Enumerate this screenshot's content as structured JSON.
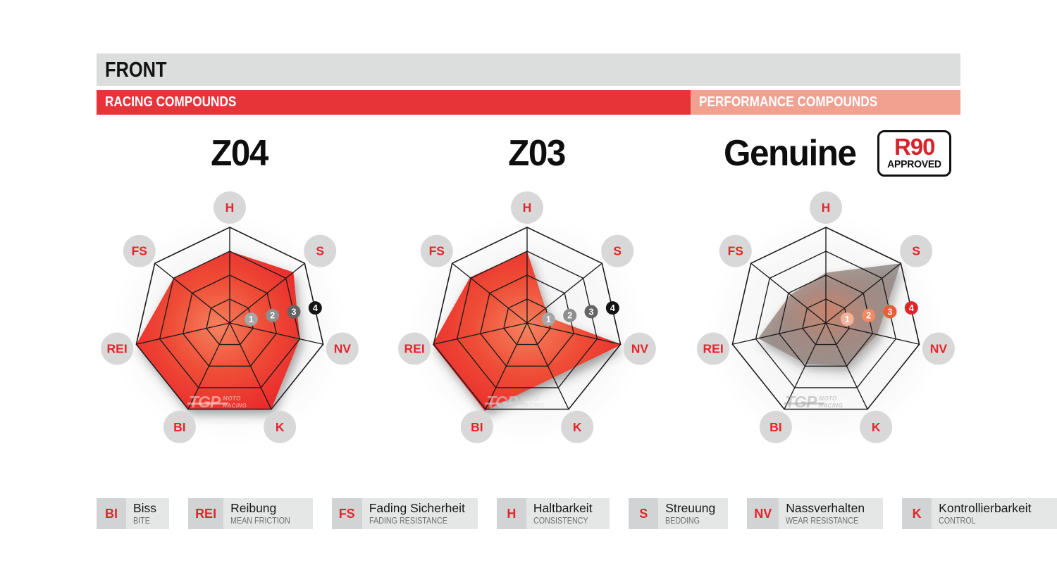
{
  "header": {
    "section_title": "FRONT",
    "left_band": "RACING COMPOUNDS",
    "right_band": "PERFORMANCE COMPOUNDS"
  },
  "colors": {
    "bar_gray": "#dcdddd",
    "band_red": "#e73439",
    "band_salmon": "#f2a191",
    "badge_red": "#d8232a",
    "web_line": "#1c1c1c",
    "axis_label_circle": "#d8d8d8",
    "axis_label_text": "#e4252b",
    "tick_gray": [
      "#a6a6a6",
      "#8d8d8d",
      "#646464",
      "#141414"
    ],
    "tick_warm": [
      "#f3b29a",
      "#f28a62",
      "#ee5c36",
      "#e1242a"
    ],
    "fill_red": [
      "#f5825f",
      "#ef4f38",
      "#e92629"
    ],
    "fill_gray": [
      "#ca7a60",
      "#a08379",
      "#8f8b89"
    ]
  },
  "watermark": {
    "brand": "TGP",
    "line1": "MOTO",
    "line2": "RACING"
  },
  "axes": [
    {
      "id": "H",
      "angle": 90
    },
    {
      "id": "S",
      "angle": 38.571
    },
    {
      "id": "NV",
      "angle": -12.857
    },
    {
      "id": "K",
      "angle": -64.286
    },
    {
      "id": "BI",
      "angle": -115.714
    },
    {
      "id": "REI",
      "angle": -167.143
    },
    {
      "id": "FS",
      "angle": 141.429
    }
  ],
  "scale_ticks": [
    1,
    2,
    3,
    4
  ],
  "chart_data": [
    {
      "type": "radar",
      "title": "Z04",
      "band": "RACING COMPOUNDS",
      "axes": [
        "H",
        "S",
        "NV",
        "K",
        "BI",
        "REI",
        "FS"
      ],
      "scale": [
        0,
        4
      ],
      "values": [
        3,
        3.4,
        3,
        4,
        4,
        4,
        3
      ],
      "outline": [
        [
          90,
          3
        ],
        [
          38.571,
          3.4
        ],
        [
          -12.857,
          3
        ],
        [
          -64.286,
          4
        ],
        [
          -115.714,
          4
        ],
        [
          -167.143,
          4
        ],
        [
          141.429,
          3
        ]
      ],
      "fill": "red",
      "ticks": "gray",
      "badge": null
    },
    {
      "type": "radar",
      "title": "Z03",
      "band": "RACING COMPOUNDS",
      "axes": [
        "H",
        "S",
        "NV",
        "K",
        "BI",
        "REI",
        "FS"
      ],
      "scale": [
        0,
        4
      ],
      "values": [
        3,
        1,
        4,
        2.5,
        4,
        4,
        3
      ],
      "outline": [
        [
          90,
          3
        ],
        [
          15,
          0.92
        ],
        [
          -12.857,
          4.05
        ],
        [
          -115.714,
          4.08
        ],
        [
          -167.143,
          4.05
        ],
        [
          141.429,
          3.05
        ]
      ],
      "fill": "red",
      "ticks": "gray",
      "badge": null
    },
    {
      "type": "radar",
      "title": "Genuine",
      "band": "PERFORMANCE COMPOUNDS",
      "axes": [
        "H",
        "S",
        "NV",
        "K",
        "BI",
        "REI",
        "FS"
      ],
      "scale": [
        0,
        4
      ],
      "values": [
        2.1,
        4,
        2.2,
        2,
        1.9,
        2.9,
        1.9
      ],
      "outline": [
        [
          90,
          2.1
        ],
        [
          38.571,
          4
        ],
        [
          -12.857,
          2.2
        ],
        [
          -64.286,
          2
        ],
        [
          -115.714,
          1.9
        ],
        [
          -167.143,
          2.9
        ],
        [
          141.429,
          1.9
        ]
      ],
      "fill": "gray",
      "ticks": "warm",
      "badge": {
        "line1": "R90",
        "line2": "APPROVED"
      }
    }
  ],
  "legend": [
    {
      "abbr": "BI",
      "de": "Biss",
      "en": "BITE"
    },
    {
      "abbr": "REI",
      "de": "Reibung",
      "en": "MEAN FRICTION"
    },
    {
      "abbr": "FS",
      "de": "Fading Sicherheit",
      "en": "FADING RESISTANCE"
    },
    {
      "abbr": "H",
      "de": "Haltbarkeit",
      "en": "CONSISTENCY"
    },
    {
      "abbr": "S",
      "de": "Streuung",
      "en": "BEDDING"
    },
    {
      "abbr": "NV",
      "de": "Nassverhalten",
      "en": "WEAR RESISTANCE"
    },
    {
      "abbr": "K",
      "de": "Kontrollierbarkeit",
      "en": "CONTROL"
    }
  ]
}
